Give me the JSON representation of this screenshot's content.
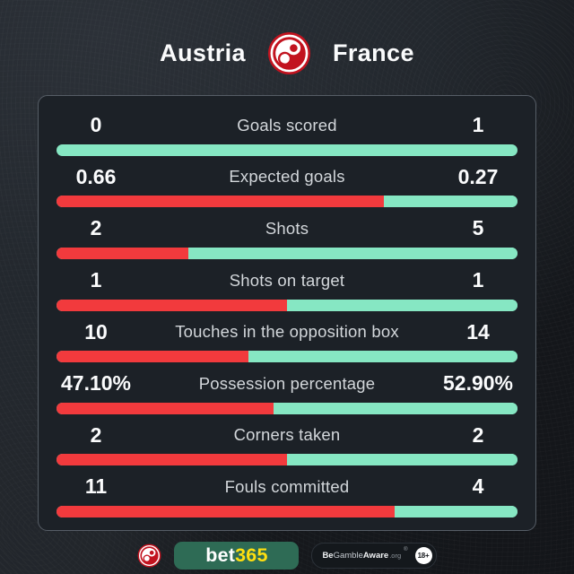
{
  "header": {
    "home_team": "Austria",
    "away_team": "France"
  },
  "colors": {
    "home_bar": "#f23a3d",
    "away_bar": "#86e7c3",
    "panel_bg": "#1c2127",
    "panel_border": "#565d66",
    "background_dark": "#15181c",
    "background_light": "#282d34",
    "bet365_green": "#2e6b55",
    "bet365_yellow": "#ffdf10",
    "crest_red": "#c2131f"
  },
  "stats": {
    "rows": [
      {
        "label": "Goals scored",
        "home_display": "0",
        "away_display": "1",
        "home_value": 0,
        "away_value": 1
      },
      {
        "label": "Expected goals",
        "home_display": "0.66",
        "away_display": "0.27",
        "home_value": 0.66,
        "away_value": 0.27
      },
      {
        "label": "Shots",
        "home_display": "2",
        "away_display": "5",
        "home_value": 2,
        "away_value": 5
      },
      {
        "label": "Shots on target",
        "home_display": "1",
        "away_display": "1",
        "home_value": 1,
        "away_value": 1
      },
      {
        "label": "Touches in the opposition box",
        "home_display": "10",
        "away_display": "14",
        "home_value": 10,
        "away_value": 14
      },
      {
        "label": "Possession percentage",
        "home_display": "47.10%",
        "away_display": "52.90%",
        "home_value": 47.1,
        "away_value": 52.9
      },
      {
        "label": "Corners taken",
        "home_display": "2",
        "away_display": "2",
        "home_value": 2,
        "away_value": 2
      },
      {
        "label": "Fouls committed",
        "home_display": "11",
        "away_display": "4",
        "home_value": 11,
        "away_value": 4
      }
    ]
  },
  "footer": {
    "brand_prefix": "bet",
    "brand_suffix": "365",
    "aware": {
      "be": "Be",
      "gamble": "Gamble",
      "aware": "Aware",
      "org": ".org",
      "reg_mark": "®",
      "age": "18+"
    }
  },
  "chart_data": {
    "type": "bar",
    "title": "Austria vs France match statistics",
    "layout": "horizontal-split-bars",
    "legend_position": "top",
    "categories": [
      "Goals scored",
      "Expected goals",
      "Shots",
      "Shots on target",
      "Touches in the opposition box",
      "Possession percentage",
      "Corners taken",
      "Fouls committed"
    ],
    "series": [
      {
        "name": "Austria",
        "color": "#f23a3d",
        "values": [
          0,
          0.66,
          2,
          1,
          10,
          47.1,
          2,
          11
        ]
      },
      {
        "name": "France",
        "color": "#86e7c3",
        "values": [
          1,
          0.27,
          5,
          1,
          14,
          52.9,
          2,
          4
        ]
      }
    ],
    "bar_note": "each bar shows home share = home/(home+away) in red, remainder in teal"
  }
}
